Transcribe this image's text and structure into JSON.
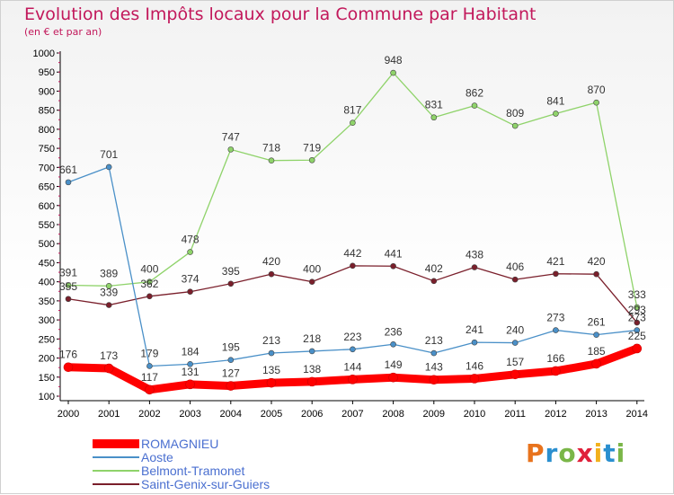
{
  "header": {
    "title": "Evolution des Impôts locaux pour la Commune par Habitant",
    "subtitle": "(en € et par an)"
  },
  "logo": {
    "text": "Proxiti",
    "colors": [
      "#e8731d",
      "#2a8fcf",
      "#7ab648",
      "#e0203a",
      "#f2b11d",
      "#2a8fcf",
      "#7ab648"
    ]
  },
  "chart_data": {
    "type": "line",
    "x": [
      "2000",
      "2001",
      "2002",
      "2003",
      "2004",
      "2005",
      "2006",
      "2007",
      "2008",
      "2009",
      "2010",
      "2011",
      "2012",
      "2013",
      "2014"
    ],
    "ylim": [
      100,
      1000
    ],
    "yticks": [
      100,
      150,
      200,
      250,
      300,
      350,
      400,
      450,
      500,
      550,
      600,
      650,
      700,
      750,
      800,
      850,
      900,
      950,
      1000
    ],
    "grid": false,
    "legend_position": "bottom-left",
    "series": [
      {
        "name": "ROMAGNIEU",
        "color": "#ff0000",
        "values": [
          176,
          173,
          117,
          131,
          127,
          135,
          138,
          144,
          149,
          143,
          146,
          157,
          166,
          185,
          225
        ]
      },
      {
        "name": "Aoste",
        "color": "#4a90c8",
        "values": [
          661,
          701,
          179,
          184,
          195,
          213,
          218,
          223,
          236,
          213,
          241,
          240,
          273,
          261,
          273
        ]
      },
      {
        "name": "Belmont-Tramonet",
        "color": "#8fd36a",
        "values": [
          391,
          389,
          400,
          478,
          747,
          718,
          719,
          817,
          948,
          831,
          862,
          809,
          841,
          870,
          333
        ]
      },
      {
        "name": "Saint-Genix-sur-Guiers",
        "color": "#7a1f2b",
        "values": [
          355,
          339,
          362,
          374,
          395,
          420,
          400,
          442,
          441,
          402,
          438,
          406,
          421,
          420,
          293
        ]
      }
    ]
  }
}
